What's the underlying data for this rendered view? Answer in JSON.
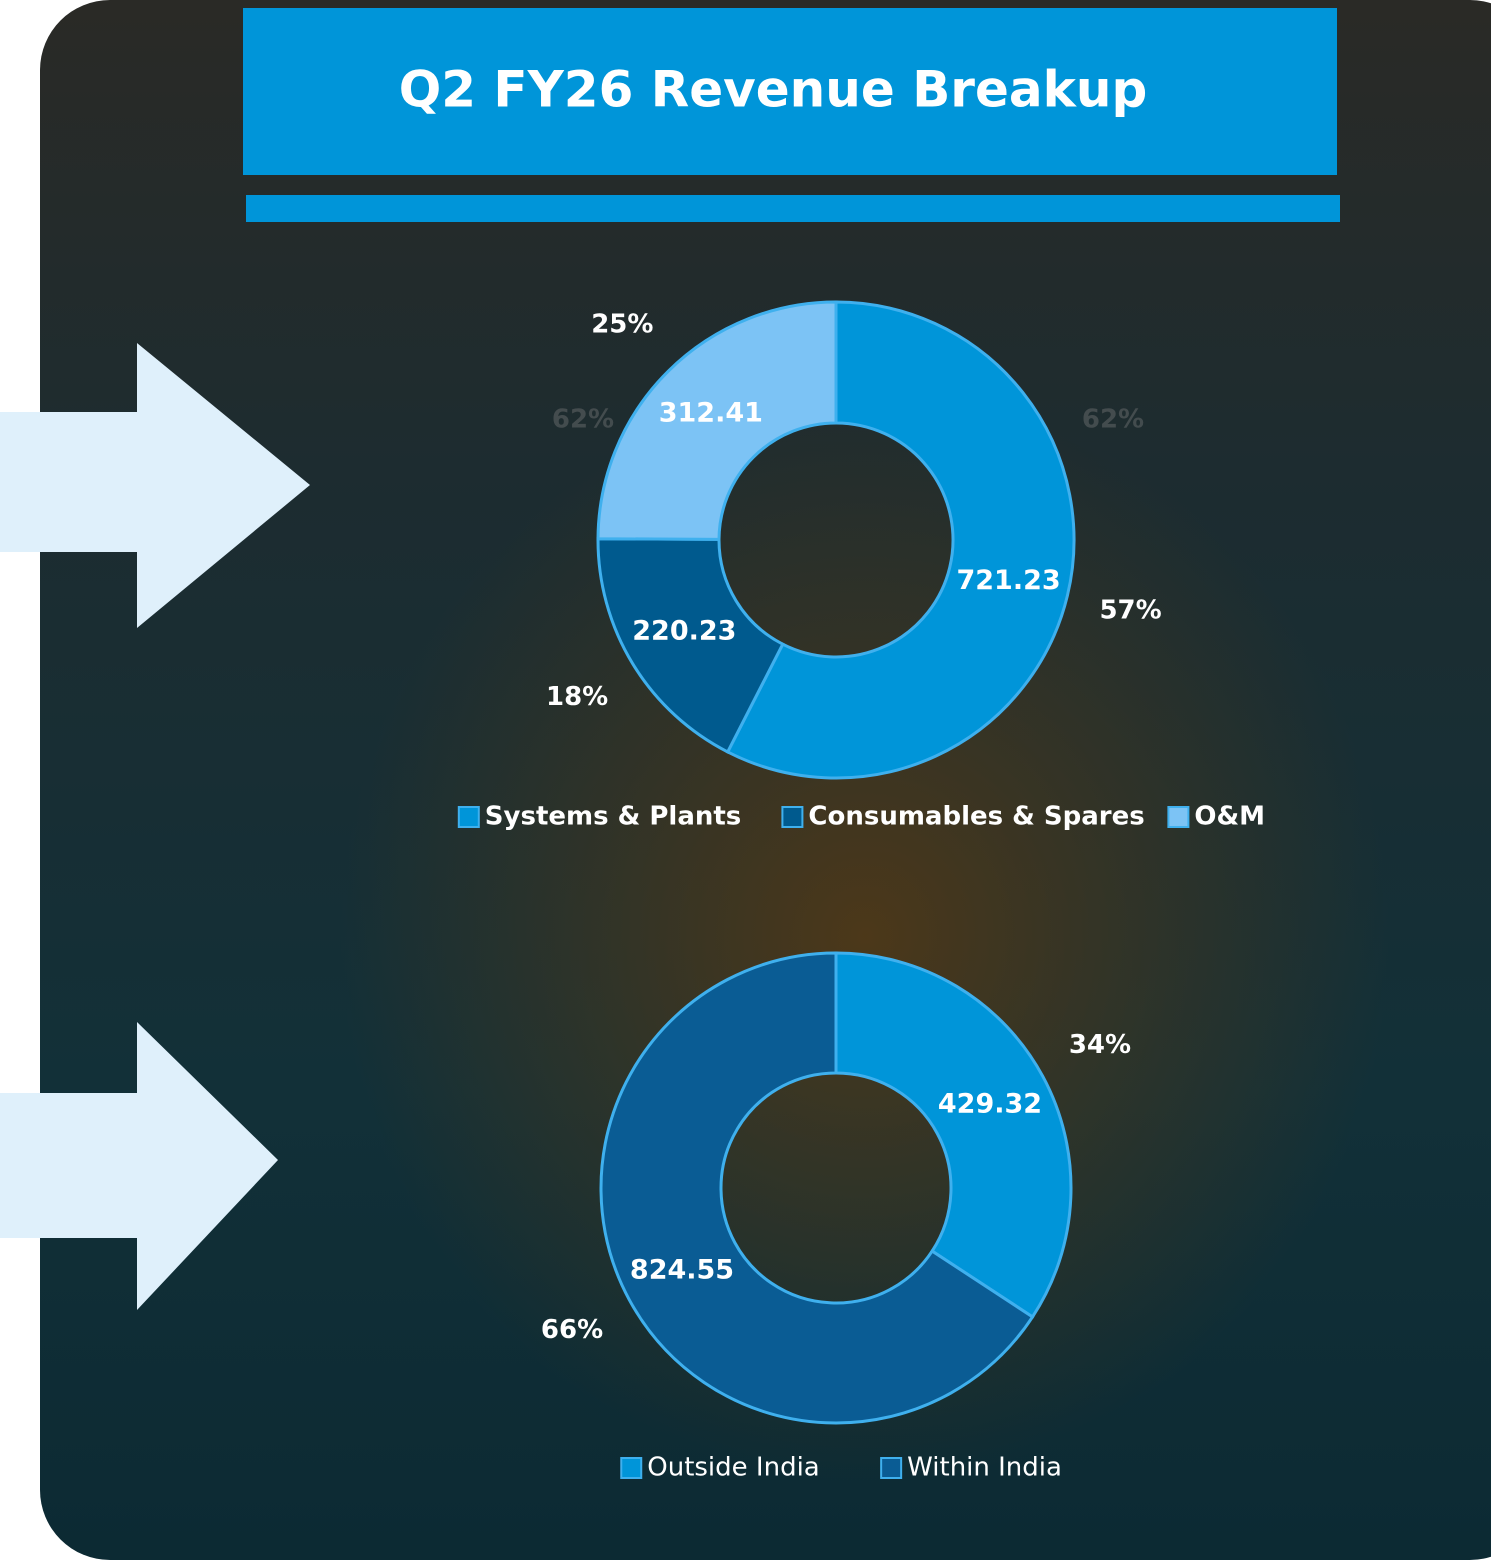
{
  "title": "Q2 FY26 Revenue Breakup",
  "chart_data": [
    {
      "type": "donut",
      "categories": [
        "Systems & Plants",
        "Consumables & Spares",
        "O&M"
      ],
      "values": [
        721.23,
        220.23,
        312.41
      ],
      "percent_labels": [
        "57%",
        "18%",
        "25%"
      ],
      "colors": [
        "#0095d9",
        "#005a8e",
        "#7cc3f5"
      ],
      "annotations": [
        "62%",
        "62%"
      ]
    },
    {
      "type": "donut",
      "categories": [
        "Outside India",
        "Within India"
      ],
      "values": [
        429.32,
        824.55
      ],
      "percent_labels": [
        "34%",
        "66%"
      ],
      "colors": [
        "#0095d9",
        "#0a5c94"
      ]
    }
  ]
}
